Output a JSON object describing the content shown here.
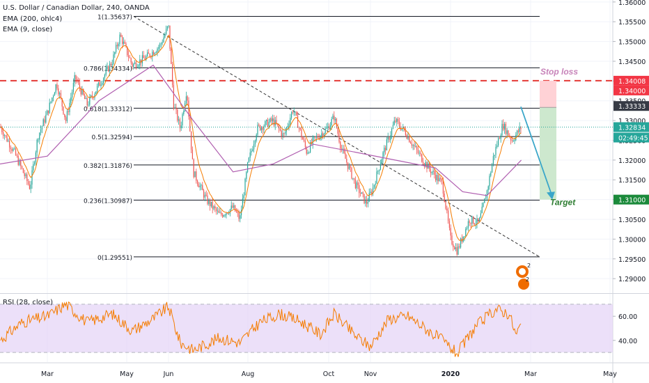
{
  "header": {
    "title": "U.S. Dollar / Canadian Dollar, 240, OANDA",
    "indicator1": "EMA (200, ohlc4)",
    "indicator2": "EMA (9, close)"
  },
  "rsi_header": "RSI (28, close)",
  "annotations": {
    "stop_loss": "Stop loss",
    "target": "Target"
  },
  "price_tags": {
    "stop": "1.34008",
    "level": "1.34000",
    "fib": "1.33333",
    "current": "1.32834",
    "countdown": "02:49:45",
    "target": "1.31000"
  },
  "colors": {
    "up": "#26a69a",
    "down": "#ef5350",
    "ema200": "#b05fb0",
    "ema9": "#f57c00",
    "rsi": "#f57c00",
    "rsi_band": "#e6d5f7",
    "stop": "#e53935",
    "target": "#2e7d32",
    "current": "#26a69a"
  },
  "chart_data": {
    "type": "candlestick",
    "symbol": "USDCAD",
    "timeframe": "240",
    "x_ticks": [
      "Mar",
      "May",
      "Jun",
      "Aug",
      "Oct",
      "Nov",
      "2020",
      "Mar",
      "May"
    ],
    "y_ticks": [
      "1.36000",
      "1.35500",
      "1.35000",
      "1.34500",
      "1.34000",
      "1.33500",
      "1.33000",
      "1.32500",
      "1.32000",
      "1.31500",
      "1.31000",
      "1.30500",
      "1.30000",
      "1.29500",
      "1.29000"
    ],
    "ylim": [
      1.2865,
      1.3605
    ],
    "fib_levels": [
      {
        "ratio": "1",
        "price": 1.35637,
        "label": "1(1.35637)"
      },
      {
        "ratio": "0.786",
        "price": 1.34334,
        "label": "0.786(1.34334)"
      },
      {
        "ratio": "0.618",
        "price": 1.33312,
        "label": "0.618(1.33312)"
      },
      {
        "ratio": "0.5",
        "price": 1.32594,
        "label": "0.5(1.32594)"
      },
      {
        "ratio": "0.382",
        "price": 1.31876,
        "label": "0.382(1.31876)"
      },
      {
        "ratio": "0.236",
        "price": 1.30987,
        "label": "0.236(1.30987)"
      },
      {
        "ratio": "0",
        "price": 1.29551,
        "label": "0(1.29551)"
      }
    ],
    "stop_loss": 1.34008,
    "target": 1.31,
    "current_price": 1.32834,
    "close_path": [
      [
        "Feb 1",
        1.3285
      ],
      [
        "Feb 10",
        1.322
      ],
      [
        "Feb 20",
        1.313
      ],
      [
        "Feb 25",
        1.326
      ],
      [
        "Mar 1",
        1.332
      ],
      [
        "Mar 8",
        1.3395
      ],
      [
        "Mar 15",
        1.33
      ],
      [
        "Mar 22",
        1.341
      ],
      [
        "Apr 1",
        1.334
      ],
      [
        "Apr 10",
        1.339
      ],
      [
        "Apr 20",
        1.345
      ],
      [
        "Apr 26",
        1.3515
      ],
      [
        "May 5",
        1.344
      ],
      [
        "May 15",
        1.346
      ],
      [
        "May 25",
        1.349
      ],
      [
        "May 31",
        1.354
      ],
      [
        "Jun 5",
        1.334
      ],
      [
        "Jun 10",
        1.328
      ],
      [
        "Jun 15",
        1.338
      ],
      [
        "Jun 20",
        1.317
      ],
      [
        "Jun 30",
        1.31
      ],
      [
        "Jul 10",
        1.306
      ],
      [
        "Jul 20",
        1.308
      ],
      [
        "Jul 25",
        1.305
      ],
      [
        "Aug 1",
        1.319
      ],
      [
        "Aug 8",
        1.328
      ],
      [
        "Aug 20",
        1.33
      ],
      [
        "Aug 28",
        1.326
      ],
      [
        "Sep 5",
        1.333
      ],
      [
        "Sep 15",
        1.322
      ],
      [
        "Sep 20",
        1.325
      ],
      [
        "Sep 30",
        1.328
      ],
      [
        "Oct 5",
        1.331
      ],
      [
        "Oct 10",
        1.323
      ],
      [
        "Oct 20",
        1.314
      ],
      [
        "Oct 28",
        1.309
      ],
      [
        "Nov 3",
        1.313
      ],
      [
        "Nov 10",
        1.321
      ],
      [
        "Nov 20",
        1.33
      ],
      [
        "Nov 28",
        1.327
      ],
      [
        "Dec 5",
        1.323
      ],
      [
        "Dec 15",
        1.318
      ],
      [
        "Dec 25",
        1.314
      ],
      [
        "Dec 31",
        1.3
      ],
      [
        "Jan 6",
        1.297
      ],
      [
        "Jan 15",
        1.305
      ],
      [
        "Jan 22",
        1.304
      ],
      [
        "Jan 28",
        1.312
      ],
      [
        "Feb 3",
        1.321
      ],
      [
        "Feb 10",
        1.329
      ],
      [
        "Feb 17",
        1.325
      ],
      [
        "Feb 24",
        1.3283
      ]
    ],
    "ema200_path": [
      [
        "Feb 1",
        1.319
      ],
      [
        "Mar 1",
        1.321
      ],
      [
        "Apr 10",
        1.335
      ],
      [
        "May 20",
        1.344
      ],
      [
        "Jun 20",
        1.33
      ],
      [
        "Jul 20",
        1.317
      ],
      [
        "Aug 20",
        1.319
      ],
      [
        "Sep 20",
        1.324
      ],
      [
        "Oct 20",
        1.322
      ],
      [
        "Nov 20",
        1.32
      ],
      [
        "Dec 20",
        1.318
      ],
      [
        "Jan 10",
        1.312
      ],
      [
        "Jan 28",
        1.311
      ],
      [
        "Feb 24",
        1.32
      ]
    ],
    "rsi": {
      "ylim": [
        22,
        78
      ],
      "ticks": [
        "60.00",
        "40.00"
      ],
      "band": [
        30,
        70
      ],
      "path": [
        [
          "Feb 1",
          40
        ],
        [
          "Feb 15",
          55
        ],
        [
          "Mar 1",
          60
        ],
        [
          "Mar 15",
          70
        ],
        [
          "Apr 1",
          55
        ],
        [
          "Apr 20",
          62
        ],
        [
          "May 5",
          48
        ],
        [
          "May 20",
          58
        ],
        [
          "May 31",
          68
        ],
        [
          "Jun 10",
          38
        ],
        [
          "Jun 20",
          32
        ],
        [
          "Jul 10",
          42
        ],
        [
          "Jul 25",
          38
        ],
        [
          "Aug 10",
          55
        ],
        [
          "Aug 25",
          62
        ],
        [
          "Sep 10",
          56
        ],
        [
          "Sep 25",
          45
        ],
        [
          "Oct 5",
          62
        ],
        [
          "Oct 20",
          44
        ],
        [
          "Nov 1",
          35
        ],
        [
          "Nov 15",
          58
        ],
        [
          "Nov 30",
          60
        ],
        [
          "Dec 15",
          48
        ],
        [
          "Dec 25",
          40
        ],
        [
          "Jan 6",
          29
        ],
        [
          "Jan 20",
          52
        ],
        [
          "Feb 5",
          66
        ],
        [
          "Feb 15",
          62
        ],
        [
          "Feb 20",
          44
        ],
        [
          "Feb 24",
          54
        ]
      ]
    }
  }
}
